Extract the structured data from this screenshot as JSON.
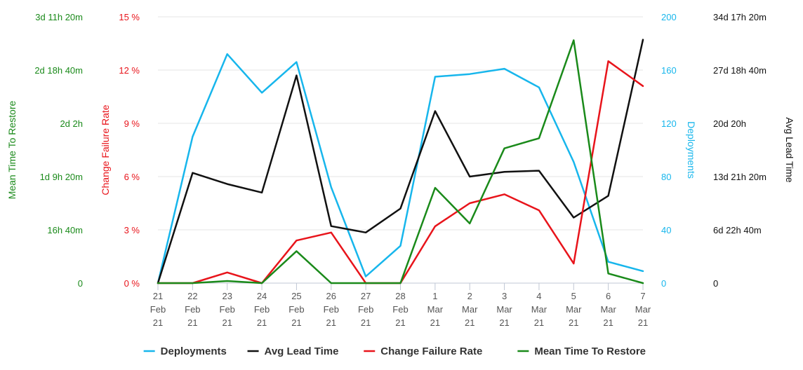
{
  "chart_data": {
    "type": "line",
    "categories": [
      [
        "21",
        "Feb",
        "21"
      ],
      [
        "22",
        "Feb",
        "21"
      ],
      [
        "23",
        "Feb",
        "21"
      ],
      [
        "24",
        "Feb",
        "21"
      ],
      [
        "25",
        "Feb",
        "21"
      ],
      [
        "26",
        "Feb",
        "21"
      ],
      [
        "27",
        "Feb",
        "21"
      ],
      [
        "28",
        "Feb",
        "21"
      ],
      [
        "1",
        "Mar",
        "21"
      ],
      [
        "2",
        "Mar",
        "21"
      ],
      [
        "3",
        "Mar",
        "21"
      ],
      [
        "4",
        "Mar",
        "21"
      ],
      [
        "5",
        "Mar",
        "21"
      ],
      [
        "6",
        "Mar",
        "21"
      ],
      [
        "7",
        "Mar",
        "21"
      ]
    ],
    "axes": {
      "mttr": {
        "title": "Mean Time To Restore",
        "color": "#1a8a1a",
        "ticks": [
          "0",
          "16h 40m",
          "1d 9h 20m",
          "2d 2h",
          "2d 18h 40m",
          "3d 11h 20m"
        ],
        "max": 5
      },
      "cfr": {
        "title": "Change Failure Rate",
        "color": "#e8141b",
        "ticks": [
          "0 %",
          "3 %",
          "6 %",
          "9 %",
          "12 %",
          "15 %"
        ],
        "max": 15
      },
      "deployments": {
        "title": "Deployments",
        "color": "#17b6ec",
        "ticks": [
          "0",
          "40",
          "80",
          "120",
          "160",
          "200"
        ],
        "max": 200
      },
      "lead": {
        "title": "Avg Lead Time",
        "color": "#111111",
        "ticks": [
          "0",
          "6d 22h 40m",
          "13d 21h 20m",
          "20d 20h",
          "27d 18h 40m",
          "34d 17h 20m"
        ],
        "max": 5
      }
    },
    "series": [
      {
        "name": "Deployments",
        "axis": "deployments",
        "color": "#17b6ec",
        "values": [
          0,
          110,
          172,
          143,
          166,
          72,
          5,
          28,
          155,
          157,
          161,
          147,
          91,
          16,
          9
        ]
      },
      {
        "name": "Avg Lead Time",
        "axis": "lead",
        "color": "#111111",
        "values": [
          0,
          2.07,
          1.86,
          1.7,
          3.9,
          1.07,
          0.95,
          1.4,
          3.23,
          2.0,
          2.09,
          2.11,
          1.23,
          1.64,
          4.57
        ]
      },
      {
        "name": "Change Failure Rate",
        "axis": "cfr",
        "color": "#e8141b",
        "values": [
          0,
          0,
          0.6,
          0,
          2.4,
          2.85,
          0,
          0,
          3.2,
          4.5,
          5.0,
          4.1,
          1.1,
          12.5,
          11.1
        ]
      },
      {
        "name": "Mean Time To Restore",
        "axis": "mttr",
        "color": "#1a8a1a",
        "values": [
          0,
          0,
          0.04,
          0,
          0.6,
          0,
          0,
          0,
          1.79,
          1.12,
          2.53,
          2.72,
          4.56,
          0.18,
          0
        ]
      }
    ],
    "grid": true,
    "legend_position": "bottom-center"
  }
}
